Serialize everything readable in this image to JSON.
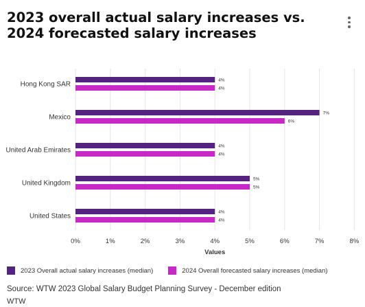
{
  "title": "2023 overall actual salary increases vs. 2024 forecasted salary increases",
  "source": "Source: WTW 2023 Global Salary Budget Planning Survey - December edition",
  "brand": "WTW",
  "menu_icon": "vertical-ellipsis-icon",
  "chart_data": {
    "type": "bar",
    "orientation": "horizontal",
    "categories": [
      "Hong Kong SAR",
      "Mexico",
      "United Arab Emirates",
      "United Kingdom",
      "United States"
    ],
    "series": [
      {
        "name": "2023 Overall actual salary increases (median)",
        "values": [
          4,
          7,
          4,
          5,
          4
        ],
        "labels": [
          "4%",
          "7%",
          "4%",
          "5%",
          "4%"
        ],
        "color": "#53237f"
      },
      {
        "name": "2024 Overall forecasted salary increases (median)",
        "values": [
          4,
          6,
          4,
          5,
          4
        ],
        "labels": [
          "4%",
          "6%",
          "4%",
          "5%",
          "4%"
        ],
        "color": "#c729c6"
      }
    ],
    "xlabel": "Values",
    "xlim": [
      0,
      8
    ],
    "xticks": [
      0,
      1,
      2,
      3,
      4,
      5,
      6,
      7,
      8
    ],
    "xtick_labels": [
      "0%",
      "1%",
      "2%",
      "3%",
      "4%",
      "5%",
      "6%",
      "7%",
      "8%"
    ],
    "grid": "vertical",
    "legend": "bottom"
  }
}
